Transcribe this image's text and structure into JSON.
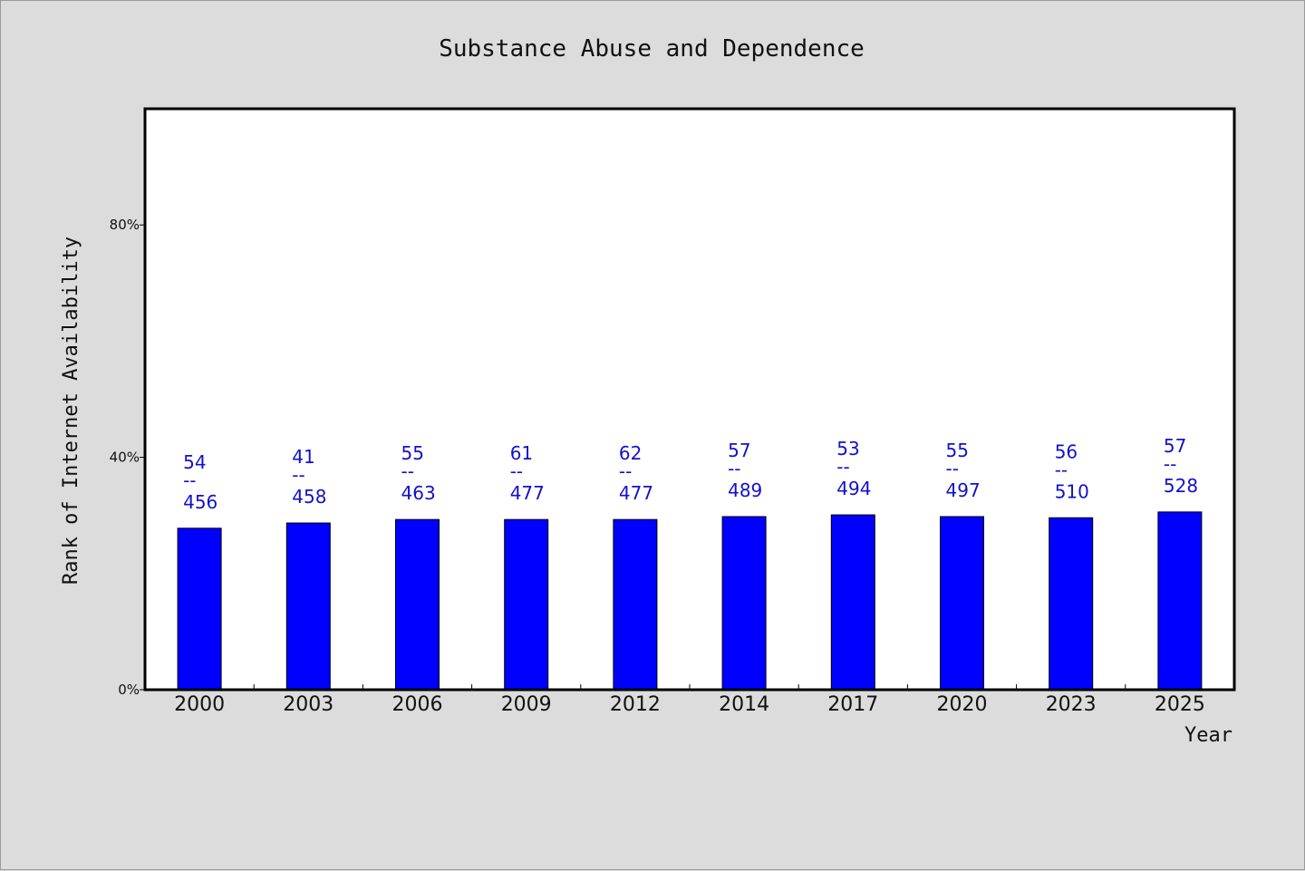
{
  "chart_data": {
    "type": "bar",
    "title": "Substance Abuse and Dependence",
    "xlabel": "Year",
    "ylabel": "Rank of Internet Availability",
    "categories": [
      "2000",
      "2003",
      "2006",
      "2009",
      "2012",
      "2014",
      "2017",
      "2020",
      "2023",
      "2025"
    ],
    "values": [
      27.8,
      28.7,
      29.3,
      29.3,
      29.3,
      29.8,
      30.1,
      29.8,
      29.6,
      30.6
    ],
    "bar_labels_top": [
      "54",
      "41",
      "55",
      "61",
      "62",
      "57",
      "53",
      "55",
      "56",
      "57"
    ],
    "bar_labels_sep": "--",
    "bar_labels_bottom": [
      "456",
      "458",
      "463",
      "477",
      "477",
      "489",
      "494",
      "497",
      "510",
      "528"
    ],
    "yticks": [
      0,
      40,
      80
    ],
    "ytick_labels": [
      "0%",
      "40%",
      "80%"
    ],
    "ylim": [
      0,
      100
    ],
    "grid": false,
    "colors": {
      "bar": "#0000ff",
      "bar_label": "#1111cc",
      "background": "#dcdcdc",
      "plot_background": "#ffffff"
    }
  }
}
